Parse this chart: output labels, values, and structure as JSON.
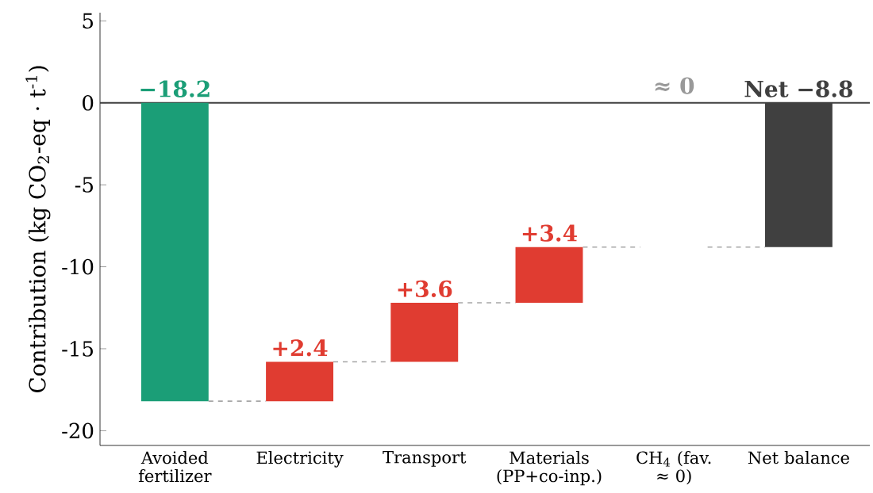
{
  "chart_data": {
    "type": "bar",
    "ylabel": "Contribution (kg CO$_{2}$-eq · t$^{-1}$)",
    "categories": [
      "Avoided fertilizer",
      "Electricity",
      "Transport",
      "Materials (PP+co-inp.)",
      "CH$_{4}$ (fav. ≈ 0)",
      "Net balance"
    ],
    "values": [
      -18.2,
      2.4,
      3.6,
      3.4,
      0,
      -8.8
    ],
    "base": [
      0,
      -18.2,
      -15.8,
      -12.2,
      null,
      0
    ],
    "colors": [
      "#1b9e77",
      "#e03c31",
      "#e03c31",
      "#e03c31",
      "#999999",
      "#404040"
    ],
    "value_labels": [
      "−18.2",
      "+2.4",
      "+3.6",
      "+3.4",
      null,
      "Net −8.8"
    ],
    "annotations": [
      {
        "text": "≈ 0",
        "x": "CH$_{4}$ (fav. ≈ 0)",
        "y": 0
      }
    ],
    "ylim": [
      -20.9,
      5.5
    ],
    "yticks": [
      -20,
      -15,
      -10,
      -5,
      0,
      5
    ],
    "ref_lines": [
      {
        "axis": "y",
        "value": 0,
        "color": "#404040"
      }
    ],
    "grid": false
  }
}
